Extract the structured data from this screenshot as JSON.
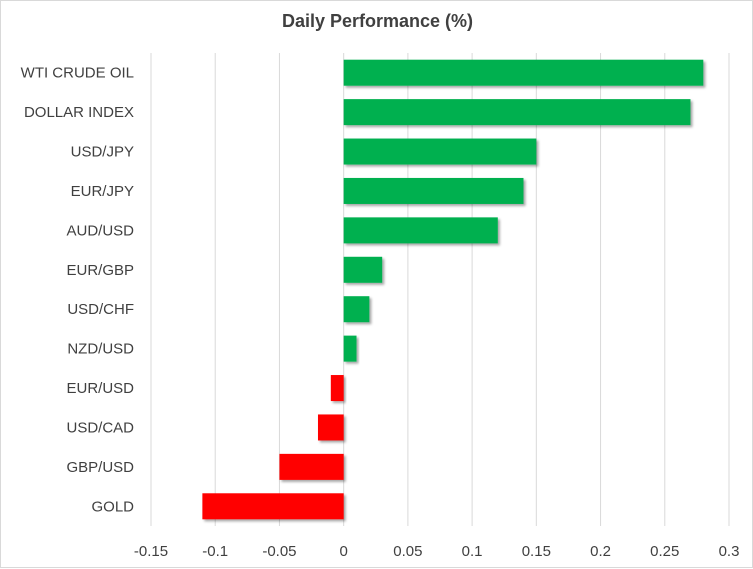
{
  "chart_data": {
    "type": "bar",
    "orientation": "horizontal",
    "title": "Daily Performance (%)",
    "xlabel": "",
    "ylabel": "",
    "xlim": [
      -0.15,
      0.3
    ],
    "xticks": [
      "-0.15",
      "-0.1",
      "-0.05",
      "0",
      "0.05",
      "0.1",
      "0.15",
      "0.2",
      "0.25",
      "0.3"
    ],
    "grid": true,
    "categories": [
      "WTI CRUDE OIL",
      "DOLLAR INDEX",
      "USD/JPY",
      "EUR/JPY",
      "AUD/USD",
      "EUR/GBP",
      "USD/CHF",
      "NZD/USD",
      "EUR/USD",
      "USD/CAD",
      "GBP/USD",
      "GOLD"
    ],
    "values": [
      0.28,
      0.27,
      0.15,
      0.14,
      0.12,
      0.03,
      0.02,
      0.01,
      -0.01,
      -0.02,
      -0.05,
      -0.11
    ],
    "colors": {
      "positive": "#00b050",
      "negative": "#ff0000",
      "grid": "#d9d9d9",
      "text": "#404040"
    }
  }
}
